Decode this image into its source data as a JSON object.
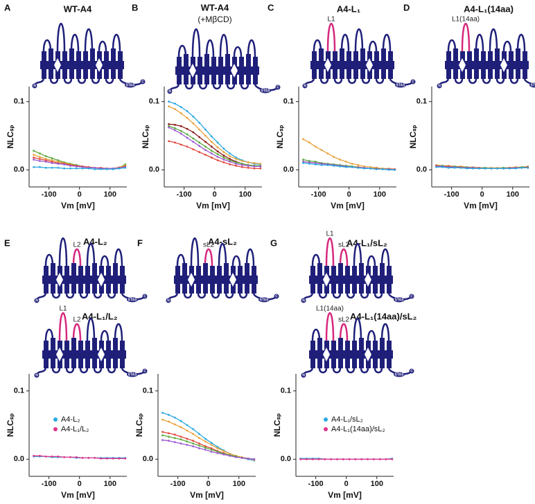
{
  "topology_labels": {
    "n": "N",
    "c": "C",
    "domain": "STAS"
  },
  "chart_data": [
    {
      "type": "scatter",
      "panel": "A",
      "constructs": [
        {
          "title": "WT-A4",
          "loop_labels": []
        }
      ],
      "xlabel": "Vm [mV]",
      "ylabel": "NLCₛₚ",
      "xlim": [
        -165,
        155
      ],
      "ylim": [
        -0.025,
        0.122
      ],
      "xticks": [
        -100,
        0,
        100
      ],
      "yticks": [
        {
          "value": 0,
          "label": "0.0"
        },
        0.1
      ],
      "x": [
        -150,
        -130,
        -110,
        -90,
        -70,
        -50,
        -30,
        -10,
        10,
        30,
        50,
        70,
        90,
        110,
        130,
        150
      ],
      "series": [
        {
          "color": "#5aa83c",
          "values": [
            0.028,
            0.024,
            0.02,
            0.017,
            0.014,
            0.011,
            0.009,
            0.007,
            0.005,
            0.004,
            0.003,
            0.002,
            0.001,
            0.001,
            0.003,
            0.008
          ]
        },
        {
          "color": "#e8a33c",
          "values": [
            0.022,
            0.019,
            0.016,
            0.014,
            0.012,
            0.01,
            0.008,
            0.006,
            0.005,
            0.004,
            0.003,
            0.002,
            0.002,
            0.002,
            0.004,
            0.006
          ]
        },
        {
          "color": "#e0463c",
          "values": [
            0.018,
            0.016,
            0.014,
            0.012,
            0.01,
            0.009,
            0.007,
            0.006,
            0.005,
            0.004,
            0.003,
            0.003,
            0.002,
            0.002,
            0.003,
            0.005
          ]
        },
        {
          "color": "#9b59d0",
          "values": [
            0.015,
            0.013,
            0.012,
            0.01,
            0.009,
            0.008,
            0.006,
            0.005,
            0.004,
            0.003,
            0.003,
            0.002,
            0.002,
            0.002,
            0.003,
            0.004
          ]
        },
        {
          "color": "#29a8e0",
          "values": [
            0.004,
            0.004,
            0.003,
            0.003,
            0.003,
            0.002,
            0.002,
            0.002,
            0.002,
            0.002,
            0.001,
            0.001,
            0.001,
            0.001,
            0.002,
            0.003
          ]
        }
      ]
    },
    {
      "type": "scatter",
      "panel": "B",
      "constructs": [
        {
          "title": "WT-A4",
          "subtitle": "(+MβCD)",
          "loop_labels": []
        }
      ],
      "xlabel": "Vm [mV]",
      "ylabel": "NLCₛₚ",
      "xlim": [
        -165,
        155
      ],
      "ylim": [
        -0.025,
        0.122
      ],
      "xticks": [
        -100,
        0,
        100
      ],
      "yticks": [
        {
          "value": 0,
          "label": "0.0"
        },
        0.1
      ],
      "x": [
        -150,
        -130,
        -110,
        -90,
        -70,
        -50,
        -30,
        -10,
        10,
        30,
        50,
        70,
        90,
        110,
        130,
        150
      ],
      "series": [
        {
          "color": "#29a8e0",
          "values": [
            0.1,
            0.097,
            0.092,
            0.086,
            0.078,
            0.069,
            0.059,
            0.049,
            0.04,
            0.031,
            0.024,
            0.018,
            0.014,
            0.011,
            0.009,
            0.008
          ]
        },
        {
          "color": "#e8a33c",
          "values": [
            0.093,
            0.089,
            0.083,
            0.076,
            0.068,
            0.059,
            0.05,
            0.041,
            0.033,
            0.026,
            0.02,
            0.016,
            0.013,
            0.011,
            0.01,
            0.009
          ]
        },
        {
          "color": "#8b1a1a",
          "values": [
            0.067,
            0.066,
            0.064,
            0.06,
            0.055,
            0.048,
            0.041,
            0.034,
            0.027,
            0.021,
            0.016,
            0.012,
            0.009,
            0.007,
            0.006,
            0.005
          ]
        },
        {
          "color": "#5aa83c",
          "values": [
            0.064,
            0.061,
            0.057,
            0.052,
            0.046,
            0.04,
            0.034,
            0.028,
            0.023,
            0.018,
            0.014,
            0.011,
            0.009,
            0.007,
            0.006,
            0.006
          ]
        },
        {
          "color": "#9b59d0",
          "values": [
            0.062,
            0.058,
            0.053,
            0.047,
            0.041,
            0.035,
            0.029,
            0.024,
            0.019,
            0.015,
            0.012,
            0.009,
            0.007,
            0.006,
            0.005,
            0.005
          ]
        },
        {
          "color": "#e0463c",
          "values": [
            0.042,
            0.04,
            0.037,
            0.034,
            0.03,
            0.026,
            0.022,
            0.018,
            0.014,
            0.011,
            0.008,
            0.006,
            0.004,
            0.003,
            0.002,
            0.002
          ]
        }
      ]
    },
    {
      "type": "scatter",
      "panel": "C",
      "constructs": [
        {
          "title": "A4-L₁",
          "loop_labels": [
            "L1"
          ]
        }
      ],
      "xlabel": "Vm [mV]",
      "ylabel": "NLCₛₚ",
      "xlim": [
        -165,
        155
      ],
      "ylim": [
        -0.025,
        0.122
      ],
      "xticks": [
        -100,
        0,
        100
      ],
      "yticks": [
        {
          "value": 0,
          "label": "0.0"
        },
        0.1
      ],
      "x": [
        -150,
        -130,
        -110,
        -90,
        -70,
        -50,
        -30,
        -10,
        10,
        30,
        50,
        70,
        90,
        110,
        130,
        150
      ],
      "series": [
        {
          "color": "#e8a33c",
          "values": [
            0.045,
            0.04,
            0.034,
            0.029,
            0.024,
            0.019,
            0.015,
            0.012,
            0.009,
            0.007,
            0.005,
            0.004,
            0.003,
            0.002,
            0.002,
            0.001
          ]
        },
        {
          "color": "#5aa83c",
          "values": [
            0.015,
            0.013,
            0.012,
            0.01,
            0.009,
            0.008,
            0.007,
            0.006,
            0.005,
            0.004,
            0.003,
            0.002,
            0.002,
            0.001,
            0.001,
            0.0
          ]
        },
        {
          "color": "#e0463c",
          "values": [
            0.012,
            0.011,
            0.01,
            0.009,
            0.008,
            0.007,
            0.006,
            0.005,
            0.004,
            0.004,
            0.003,
            0.002,
            0.002,
            0.001,
            0.001,
            0.001
          ]
        },
        {
          "color": "#9b59d0",
          "values": [
            0.012,
            0.011,
            0.01,
            0.009,
            0.008,
            0.007,
            0.006,
            0.005,
            0.004,
            0.003,
            0.003,
            0.002,
            0.001,
            0.001,
            0.001,
            0.0
          ]
        },
        {
          "color": "#29a8e0",
          "values": [
            0.01,
            0.009,
            0.008,
            0.007,
            0.007,
            0.006,
            0.005,
            0.004,
            0.004,
            0.003,
            0.002,
            0.002,
            0.001,
            0.001,
            0.0,
            0.0
          ]
        }
      ]
    },
    {
      "type": "scatter",
      "panel": "D",
      "constructs": [
        {
          "title": "A4-L₁(14aa)",
          "loop_labels": [
            "L1(14aa)"
          ]
        }
      ],
      "xlabel": "Vm [mV]",
      "ylabel": "NLCₛₚ",
      "xlim": [
        -165,
        155
      ],
      "ylim": [
        -0.025,
        0.122
      ],
      "xticks": [
        -100,
        0,
        100
      ],
      "yticks": [
        {
          "value": 0,
          "label": "0.0"
        },
        0.1
      ],
      "x": [
        -150,
        -130,
        -110,
        -90,
        -70,
        -50,
        -30,
        -10,
        10,
        30,
        50,
        70,
        90,
        110,
        130,
        150
      ],
      "series": [
        {
          "color": "#e8a33c",
          "values": [
            0.007,
            0.006,
            0.006,
            0.005,
            0.005,
            0.004,
            0.004,
            0.003,
            0.003,
            0.003,
            0.003,
            0.003,
            0.003,
            0.004,
            0.004,
            0.005
          ]
        },
        {
          "color": "#5aa83c",
          "values": [
            0.006,
            0.006,
            0.005,
            0.005,
            0.004,
            0.004,
            0.003,
            0.003,
            0.003,
            0.002,
            0.002,
            0.003,
            0.003,
            0.003,
            0.004,
            0.004
          ]
        },
        {
          "color": "#e0463c",
          "values": [
            0.006,
            0.005,
            0.005,
            0.004,
            0.004,
            0.003,
            0.003,
            0.003,
            0.002,
            0.002,
            0.002,
            0.002,
            0.003,
            0.003,
            0.003,
            0.004
          ]
        },
        {
          "color": "#9b59d0",
          "values": [
            0.005,
            0.005,
            0.004,
            0.004,
            0.003,
            0.003,
            0.003,
            0.002,
            0.002,
            0.002,
            0.002,
            0.002,
            0.002,
            0.003,
            0.003,
            0.003
          ]
        },
        {
          "color": "#29a8e0",
          "values": [
            0.004,
            0.004,
            0.003,
            0.003,
            0.003,
            0.002,
            0.002,
            0.002,
            0.002,
            0.002,
            0.002,
            0.002,
            0.002,
            0.002,
            0.003,
            0.003
          ]
        }
      ]
    },
    {
      "type": "scatter",
      "panel": "E",
      "constructs": [
        {
          "title": "A4-L₂",
          "loop_labels": [
            "L2"
          ]
        },
        {
          "title": "A4-L₁/L₂",
          "loop_labels": [
            "L1",
            "L2"
          ]
        }
      ],
      "xlabel": "Vm [mV]",
      "ylabel": "NLCₛₚ",
      "xlim": [
        -165,
        155
      ],
      "ylim": [
        -0.025,
        0.125
      ],
      "xticks": [
        -100,
        0,
        100
      ],
      "yticks": [
        {
          "value": 0,
          "label": "0.0"
        },
        0.1
      ],
      "legend": "right",
      "x": [
        -150,
        -130,
        -110,
        -90,
        -70,
        -50,
        -30,
        -10,
        10,
        30,
        50,
        70,
        90,
        110,
        130,
        150
      ],
      "series": [
        {
          "name": "A4-L₂",
          "color": "#29a8e0",
          "values": [
            0.004,
            0.004,
            0.004,
            0.003,
            0.003,
            0.003,
            0.003,
            0.002,
            0.002,
            0.002,
            0.002,
            0.002,
            0.002,
            0.002,
            0.002,
            0.002
          ]
        },
        {
          "name": "A4-L₁/L₂",
          "color": "#e0368c",
          "values": [
            0.005,
            0.005,
            0.004,
            0.004,
            0.004,
            0.003,
            0.003,
            0.003,
            0.002,
            0.002,
            0.002,
            0.001,
            0.001,
            0.001,
            0.001,
            0.001
          ]
        }
      ]
    },
    {
      "type": "scatter",
      "panel": "F",
      "constructs": [
        {
          "title": "A4-sL₂",
          "loop_labels": [
            "sL2"
          ]
        }
      ],
      "xlabel": "Vm [mV]",
      "ylabel": "NLCₛₚ",
      "xlim": [
        -165,
        155
      ],
      "ylim": [
        -0.025,
        0.125
      ],
      "xticks": [
        -100,
        0,
        100
      ],
      "yticks": [
        {
          "value": 0,
          "label": "0.0"
        },
        0.1
      ],
      "x": [
        -150,
        -130,
        -110,
        -90,
        -70,
        -50,
        -30,
        -10,
        10,
        30,
        50,
        70,
        90,
        110,
        130,
        150
      ],
      "series": [
        {
          "color": "#29a8e0",
          "values": [
            0.068,
            0.065,
            0.061,
            0.056,
            0.05,
            0.044,
            0.037,
            0.03,
            0.024,
            0.018,
            0.013,
            0.008,
            0.005,
            0.002,
            0.0,
            -0.002
          ]
        },
        {
          "color": "#e8a33c",
          "values": [
            0.058,
            0.055,
            0.051,
            0.047,
            0.042,
            0.037,
            0.031,
            0.026,
            0.021,
            0.016,
            0.012,
            0.008,
            0.005,
            0.003,
            0.001,
            -0.001
          ]
        },
        {
          "color": "#e0463c",
          "values": [
            0.04,
            0.038,
            0.036,
            0.033,
            0.03,
            0.027,
            0.023,
            0.019,
            0.016,
            0.012,
            0.009,
            0.006,
            0.004,
            0.002,
            0.001,
            0.0
          ]
        },
        {
          "color": "#5aa83c",
          "values": [
            0.035,
            0.033,
            0.031,
            0.029,
            0.026,
            0.023,
            0.02,
            0.017,
            0.014,
            0.011,
            0.008,
            0.006,
            0.004,
            0.002,
            0.001,
            0.0
          ]
        },
        {
          "color": "#9b59d0",
          "values": [
            0.028,
            0.027,
            0.025,
            0.023,
            0.021,
            0.019,
            0.016,
            0.014,
            0.011,
            0.009,
            0.007,
            0.005,
            0.003,
            0.002,
            0.001,
            0.0
          ]
        }
      ]
    },
    {
      "type": "scatter",
      "panel": "G",
      "constructs": [
        {
          "title": "A4-L₁/sL₂",
          "loop_labels": [
            "L1",
            "sL2"
          ]
        },
        {
          "title": "A4-L₁(14aa)/sL₂",
          "loop_labels": [
            "L1(14aa)",
            "sL2"
          ]
        }
      ],
      "xlabel": "Vm [mV]",
      "ylabel": "NLCₛₚ",
      "xlim": [
        -165,
        155
      ],
      "ylim": [
        -0.025,
        0.125
      ],
      "xticks": [
        -100,
        0,
        100
      ],
      "yticks": [
        {
          "value": 0,
          "label": "0.0"
        },
        0.1
      ],
      "legend": "right",
      "x": [
        -150,
        -130,
        -110,
        -90,
        -70,
        -50,
        -30,
        -10,
        10,
        30,
        50,
        70,
        90,
        110,
        130,
        150
      ],
      "series": [
        {
          "name": "A4-L₁/sL₂",
          "color": "#29a8e0",
          "values": [
            0.001,
            0.001,
            0.001,
            0.001,
            0.0,
            0.0,
            0.0,
            0.0,
            0.0,
            0.0,
            0.0,
            0.0,
            0.0,
            0.0,
            0.0,
            0.001
          ]
        },
        {
          "name": "A4-L₁(14aa)/sL₂",
          "color": "#e0368c",
          "values": [
            0.0,
            0.0,
            0.0,
            0.0,
            0.0,
            0.0,
            0.0,
            0.0,
            0.0,
            0.0,
            0.0,
            0.0,
            0.0,
            0.0,
            0.0,
            0.0
          ]
        }
      ]
    }
  ]
}
